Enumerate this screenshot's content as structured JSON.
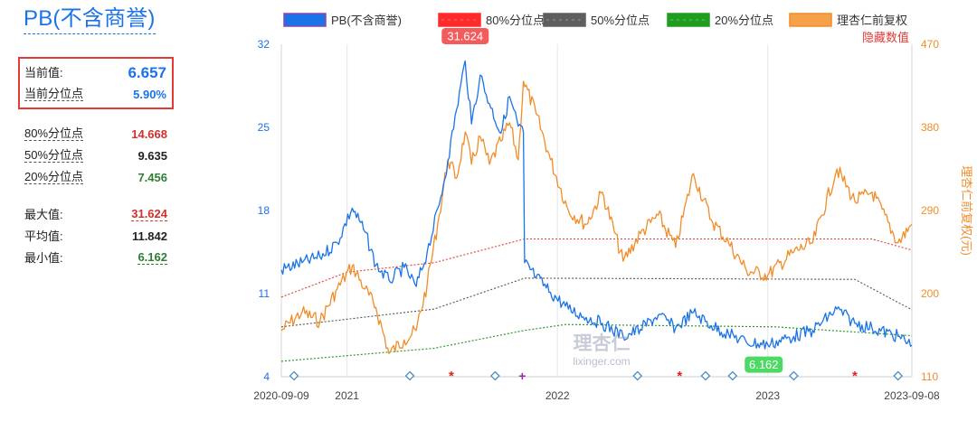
{
  "title": "PB(不含商誉)",
  "stats": {
    "current_value_label": "当前值:",
    "current_value": "6.657",
    "current_pct_label": "当前分位点",
    "current_pct": "5.90%",
    "p80_label": "80%分位点",
    "p80": "14.668",
    "p50_label": "50%分位点",
    "p50": "9.635",
    "p20_label": "20%分位点",
    "p20": "7.456",
    "max_label": "最大值:",
    "max": "31.624",
    "avg_label": "平均值:",
    "avg": "11.842",
    "min_label": "最小值:",
    "min": "6.162"
  },
  "hidden_values_label": "隐藏数值",
  "watermark": {
    "cn": "理杏仁",
    "url": "lixinger.com"
  },
  "colors": {
    "pb": "#1a73e8",
    "p80": "#e53935",
    "p50": "#555555",
    "p20": "#2e9a2e",
    "price": "#f28c28",
    "max_label_bg": "#f25c5c",
    "min_label_bg": "#4cd964"
  },
  "chart_data": {
    "type": "line",
    "legend_position": "top",
    "grid": "vertical",
    "x_range": [
      "2020-09-09",
      "2023-09-08"
    ],
    "x_ticks": [
      "2020-09-09",
      "2021",
      "2022",
      "2023",
      "2023-09-08"
    ],
    "y_left": {
      "range": [
        4,
        32
      ],
      "ticks": [
        "4",
        "11",
        "18",
        "25",
        "32"
      ]
    },
    "y_right": {
      "range": [
        110,
        470
      ],
      "ticks": [
        "110",
        "200",
        "290",
        "380",
        "470"
      ],
      "label": "理杏仁前复权(元)"
    },
    "series": [
      {
        "name": "PB(不含商誉)",
        "axis": "left",
        "points": [
          [
            "2020-09-09",
            13.0
          ],
          [
            "2020-10-15",
            13.6
          ],
          [
            "2020-11-15",
            14.1
          ],
          [
            "2020-12-15",
            15.3
          ],
          [
            "2021-01-10",
            18.2
          ],
          [
            "2021-02-01",
            16.2
          ],
          [
            "2021-02-20",
            13.4
          ],
          [
            "2021-03-15",
            12.1
          ],
          [
            "2021-04-10",
            13.2
          ],
          [
            "2021-05-01",
            11.6
          ],
          [
            "2021-05-20",
            14.5
          ],
          [
            "2021-06-10",
            18.5
          ],
          [
            "2021-06-25",
            22.2
          ],
          [
            "2021-07-10",
            26.5
          ],
          [
            "2021-07-25",
            30.6
          ],
          [
            "2021-08-05",
            25.3
          ],
          [
            "2021-08-20",
            29.4
          ],
          [
            "2021-09-05",
            27.0
          ],
          [
            "2021-09-25",
            24.5
          ],
          [
            "2021-10-10",
            27.6
          ],
          [
            "2021-10-25",
            25.1
          ],
          [
            "2021-11-03",
            24.6
          ],
          [
            "2021-11-05",
            13.6
          ],
          [
            "2021-11-25",
            12.4
          ],
          [
            "2021-12-20",
            11.1
          ],
          [
            "2022-01-20",
            9.7
          ],
          [
            "2022-02-20",
            9.0
          ],
          [
            "2022-03-20",
            8.5
          ],
          [
            "2022-04-25",
            7.4
          ],
          [
            "2022-05-25",
            8.0
          ],
          [
            "2022-06-25",
            9.2
          ],
          [
            "2022-07-25",
            8.1
          ],
          [
            "2022-08-25",
            9.4
          ],
          [
            "2022-09-25",
            8.3
          ],
          [
            "2022-10-25",
            7.6
          ],
          [
            "2022-11-25",
            6.9
          ],
          [
            "2023-01-01",
            6.7
          ],
          [
            "2023-02-15",
            7.4
          ],
          [
            "2023-03-20",
            7.9
          ],
          [
            "2023-05-01",
            9.7
          ],
          [
            "2023-06-01",
            8.5
          ],
          [
            "2023-07-01",
            8.1
          ],
          [
            "2023-08-15",
            7.4
          ],
          [
            "2023-09-08",
            6.657
          ]
        ]
      },
      {
        "name": "80%分位点",
        "axis": "left",
        "points": [
          [
            "2020-09-09",
            10.7
          ],
          [
            "2021-01-01",
            12.8
          ],
          [
            "2021-06-01",
            13.6
          ],
          [
            "2021-11-05",
            15.6
          ],
          [
            "2023-06-30",
            15.6
          ],
          [
            "2023-09-08",
            14.668
          ]
        ]
      },
      {
        "name": "50%分位点",
        "axis": "left",
        "points": [
          [
            "2020-09-09",
            8.2
          ],
          [
            "2021-06-01",
            9.7
          ],
          [
            "2021-11-05",
            12.3
          ],
          [
            "2023-06-01",
            12.2
          ],
          [
            "2023-09-08",
            9.635
          ]
        ]
      },
      {
        "name": "20%分位点",
        "axis": "left",
        "points": [
          [
            "2020-09-09",
            5.3
          ],
          [
            "2021-06-01",
            6.4
          ],
          [
            "2021-11-05",
            7.9
          ],
          [
            "2022-01-15",
            8.4
          ],
          [
            "2023-01-15",
            8.2
          ],
          [
            "2023-09-08",
            7.456
          ]
        ]
      },
      {
        "name": "理杏仁前复权",
        "axis": "right",
        "points": [
          [
            "2020-09-09",
            160
          ],
          [
            "2020-10-15",
            180
          ],
          [
            "2020-11-15",
            170
          ],
          [
            "2020-12-15",
            205
          ],
          [
            "2021-01-10",
            230
          ],
          [
            "2021-02-01",
            205
          ],
          [
            "2021-02-20",
            185
          ],
          [
            "2021-03-15",
            135
          ],
          [
            "2021-04-10",
            150
          ],
          [
            "2021-05-01",
            160
          ],
          [
            "2021-05-20",
            210
          ],
          [
            "2021-06-10",
            285
          ],
          [
            "2021-06-25",
            345
          ],
          [
            "2021-07-10",
            325
          ],
          [
            "2021-07-25",
            375
          ],
          [
            "2021-08-05",
            340
          ],
          [
            "2021-08-20",
            370
          ],
          [
            "2021-09-05",
            340
          ],
          [
            "2021-09-25",
            365
          ],
          [
            "2021-10-10",
            385
          ],
          [
            "2021-10-25",
            345
          ],
          [
            "2021-11-03",
            430
          ],
          [
            "2021-11-25",
            395
          ],
          [
            "2021-12-20",
            345
          ],
          [
            "2022-01-20",
            290
          ],
          [
            "2022-02-20",
            275
          ],
          [
            "2022-03-20",
            310
          ],
          [
            "2022-04-25",
            235
          ],
          [
            "2022-05-25",
            265
          ],
          [
            "2022-06-25",
            285
          ],
          [
            "2022-07-25",
            250
          ],
          [
            "2022-08-25",
            330
          ],
          [
            "2022-09-25",
            280
          ],
          [
            "2022-10-25",
            255
          ],
          [
            "2022-11-25",
            225
          ],
          [
            "2023-01-01",
            220
          ],
          [
            "2023-02-15",
            245
          ],
          [
            "2023-03-20",
            255
          ],
          [
            "2023-05-01",
            335
          ],
          [
            "2023-06-01",
            300
          ],
          [
            "2023-07-01",
            310
          ],
          [
            "2023-08-15",
            255
          ],
          [
            "2023-09-08",
            275
          ]
        ]
      }
    ],
    "annotations": [
      {
        "text": "31.624",
        "date": "2021-07-25",
        "value": 31.624,
        "kind": "max"
      },
      {
        "text": "6.162",
        "date": "2022-12-25",
        "value": 6.162,
        "kind": "min"
      }
    ],
    "event_markers": [
      {
        "date": "2020-10-01",
        "symbol": "diamond"
      },
      {
        "date": "2021-04-20",
        "symbol": "diamond"
      },
      {
        "date": "2021-07-01",
        "symbol": "star"
      },
      {
        "date": "2021-09-15",
        "symbol": "diamond"
      },
      {
        "date": "2021-11-01",
        "symbol": "plus"
      },
      {
        "date": "2022-05-20",
        "symbol": "diamond"
      },
      {
        "date": "2022-08-01",
        "symbol": "star"
      },
      {
        "date": "2022-09-15",
        "symbol": "diamond"
      },
      {
        "date": "2022-11-01",
        "symbol": "diamond"
      },
      {
        "date": "2023-02-15",
        "symbol": "diamond"
      },
      {
        "date": "2023-06-01",
        "symbol": "star"
      },
      {
        "date": "2023-08-15",
        "symbol": "diamond"
      }
    ]
  }
}
